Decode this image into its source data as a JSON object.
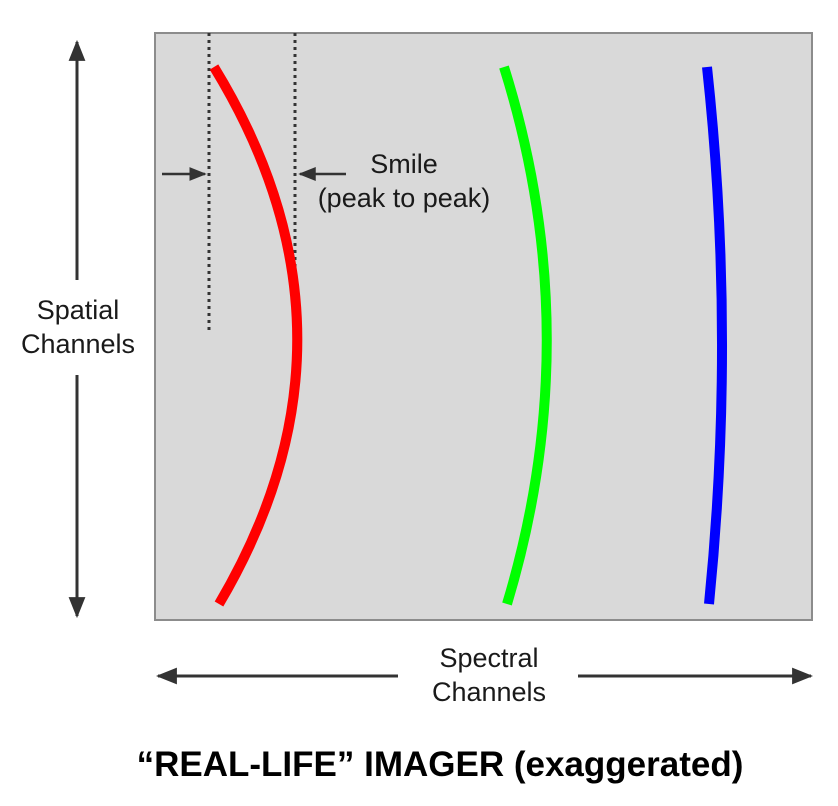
{
  "labels": {
    "spatial_line1": "Spatial",
    "spatial_line2": "Channels",
    "spectral_line1": "Spectral",
    "spectral_line2": "Channels",
    "smile_line1": "Smile",
    "smile_line2": "(peak to peak)"
  },
  "caption": "“REAL-LIFE” IMAGER (exaggerated)",
  "colors": {
    "panel_background": "#d9d9d9",
    "panel_border": "#8c8c8c",
    "red_line": "#ff0000",
    "green_line": "#00ff00",
    "blue_line": "#0000ff",
    "arrows": "#333333",
    "guides": "#333333"
  },
  "icons": {
    "spatial_axis": "double-headed-vertical-arrow",
    "spectral_axis": "double-headed-horizontal-arrow",
    "smile_markers": "inward-pointing-arrows"
  }
}
